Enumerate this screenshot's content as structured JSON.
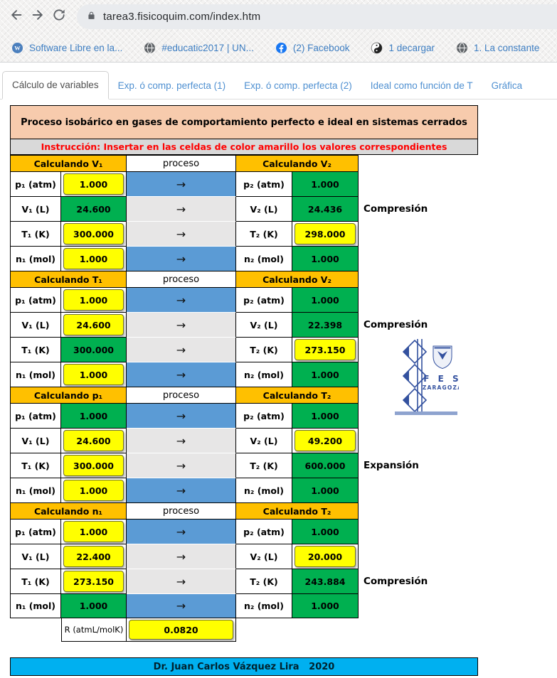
{
  "browser": {
    "url": "tarea3.fisicoquim.com/index.htm",
    "bookmarks": [
      {
        "label": "Software Libre en la...",
        "icon": "wordpress-icon"
      },
      {
        "label": "#educatic2017 | UN...",
        "icon": "globe-icon"
      },
      {
        "label": "(2) Facebook",
        "icon": "facebook-icon"
      },
      {
        "label": "1 decargar",
        "icon": "yinyang-icon"
      },
      {
        "label": "1. La constante",
        "icon": "globe-icon"
      }
    ]
  },
  "tabs": [
    {
      "label": "Cálculo de variables",
      "active": true
    },
    {
      "label": "Exp. ó comp. perfecta (1)",
      "active": false
    },
    {
      "label": "Exp. ó comp. perfecta (2)",
      "active": false
    },
    {
      "label": "Ideal como función de T",
      "active": false
    },
    {
      "label": "Gráfica",
      "active": false
    }
  ],
  "page": {
    "title": "Proceso isobárico en gases de comportamiento perfecto e ideal en sistemas cerrados",
    "instruction": "Instrucción: Insertar en las celdas de color amarillo los valores correspondientes",
    "proceso_header": "proceso",
    "arrow": "→",
    "blocks": [
      {
        "left_header": "Calculando V₁",
        "right_header": "Calculando  V₂",
        "rows": [
          {
            "l1": "p₁ (atm)",
            "v1": "1.000",
            "v1_style": "yellow",
            "proc_style": "blue",
            "l2": "p₂ (atm)",
            "v2": "1.000",
            "v2_style": "green",
            "side": ""
          },
          {
            "l1": "V₁ (L)",
            "v1": "24.600",
            "v1_style": "green",
            "proc_style": "gray",
            "l2": "V₂ (L)",
            "v2": "24.436",
            "v2_style": "green",
            "side": "Compresión"
          },
          {
            "l1": "T₁ (K)",
            "v1": "300.000",
            "v1_style": "yellow",
            "proc_style": "gray",
            "l2": "T₂ (K)",
            "v2": "298.000",
            "v2_style": "yellow",
            "side": ""
          },
          {
            "l1": "n₁ (mol)",
            "v1": "1.000",
            "v1_style": "yellow",
            "proc_style": "blue",
            "l2": "n₂ (mol)",
            "v2": "1.000",
            "v2_style": "green",
            "side": ""
          }
        ]
      },
      {
        "left_header": "Calculando T₁",
        "right_header": "Calculando  V₂",
        "rows": [
          {
            "l1": "p₁ (atm)",
            "v1": "1.000",
            "v1_style": "yellow",
            "proc_style": "blue",
            "l2": "p₂ (atm)",
            "v2": "1.000",
            "v2_style": "green",
            "side": ""
          },
          {
            "l1": "V₁ (L)",
            "v1": "24.600",
            "v1_style": "yellow",
            "proc_style": "gray",
            "l2": "V₂ (L)",
            "v2": "22.398",
            "v2_style": "green",
            "side": "Compresión"
          },
          {
            "l1": "T₁ (K)",
            "v1": "300.000",
            "v1_style": "green",
            "proc_style": "gray",
            "l2": "T₂ (K)",
            "v2": "273.150",
            "v2_style": "yellow",
            "side": ""
          },
          {
            "l1": "n₁ (mol)",
            "v1": "1.000",
            "v1_style": "yellow",
            "proc_style": "blue",
            "l2": "n₂ (mol)",
            "v2": "1.000",
            "v2_style": "green",
            "side": ""
          }
        ]
      },
      {
        "left_header": "Calculando p₁",
        "right_header": "Calculando  T₂",
        "rows": [
          {
            "l1": "p₁ (atm)",
            "v1": "1.000",
            "v1_style": "green",
            "proc_style": "blue",
            "l2": "p₂ (atm)",
            "v2": "1.000",
            "v2_style": "green",
            "side": ""
          },
          {
            "l1": "V₁ (L)",
            "v1": "24.600",
            "v1_style": "yellow",
            "proc_style": "gray",
            "l2": "V₂ (L)",
            "v2": "49.200",
            "v2_style": "yellow",
            "side": ""
          },
          {
            "l1": "T₁ (K)",
            "v1": "300.000",
            "v1_style": "yellow",
            "proc_style": "gray",
            "l2": "T₂ (K)",
            "v2": "600.000",
            "v2_style": "green",
            "side": "Expansión"
          },
          {
            "l1": "n₁ (mol)",
            "v1": "1.000",
            "v1_style": "yellow",
            "proc_style": "blue",
            "l2": "n₂ (mol)",
            "v2": "1.000",
            "v2_style": "green",
            "side": ""
          }
        ]
      },
      {
        "left_header": "Calculando n₁",
        "right_header": "Calculando  T₂",
        "rows": [
          {
            "l1": "p₁ (atm)",
            "v1": "1.000",
            "v1_style": "yellow",
            "proc_style": "blue",
            "l2": "p₂ (atm)",
            "v2": "1.000",
            "v2_style": "green",
            "side": ""
          },
          {
            "l1": "V₁ (L)",
            "v1": "22.400",
            "v1_style": "yellow",
            "proc_style": "gray",
            "l2": "V₂ (L)",
            "v2": "20.000",
            "v2_style": "yellow",
            "side": ""
          },
          {
            "l1": "T₁ (K)",
            "v1": "273.150",
            "v1_style": "yellow",
            "proc_style": "gray",
            "l2": "T₂ (K)",
            "v2": "243.884",
            "v2_style": "green",
            "side": "Compresión"
          },
          {
            "l1": "n₁ (mol)",
            "v1": "1.000",
            "v1_style": "green",
            "proc_style": "blue",
            "l2": "n₂ (mol)",
            "v2": "1.000",
            "v2_style": "green",
            "side": ""
          }
        ]
      }
    ],
    "r_label": "R (atmL/molK)",
    "r_value": "0.0820",
    "footer": "Dr. Juan Carlos Vázquez Lira   2020",
    "logo": {
      "line1": "F E S",
      "line2": "ZARAGOZA"
    }
  },
  "colors": {
    "yellow_input": "#FFFF00",
    "green_result": "#00B050",
    "blue_process": "#5B9BD5",
    "gray_process": "#E7E6E6",
    "orange_header": "#FFC000",
    "peach_title": "#F7CBAD",
    "instruction_bg": "#D9D9D9",
    "instruction_text": "#FF0000",
    "footer_bg": "#00B0F0"
  }
}
